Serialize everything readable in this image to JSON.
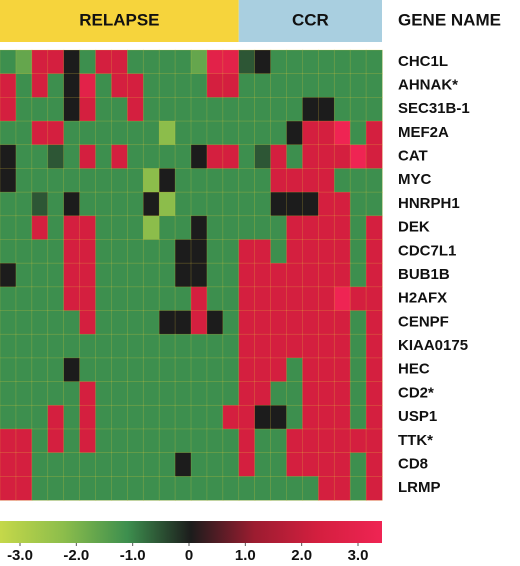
{
  "chart_data": {
    "type": "heatmap",
    "column_groups": [
      {
        "name": "RELAPSE",
        "color": "#f6d43c",
        "span": 15
      },
      {
        "name": "CCR",
        "color": "#a9cfe0",
        "span": 9
      }
    ],
    "row_header": "GENE NAME",
    "categories": [
      null,
      null,
      null,
      null,
      null,
      null,
      null,
      null,
      null,
      null,
      null,
      null,
      null,
      null,
      null,
      null,
      null,
      null,
      null,
      null,
      null,
      null,
      null,
      null
    ],
    "rows": [
      "CHC1L",
      "AHNAK*",
      "SEC31B-1",
      "MEF2A",
      "CAT",
      "MYC",
      "HNRPH1",
      "DEK",
      "CDC7L1",
      "BUB1B",
      "H2AFX",
      "CENPF",
      "KIAA0175",
      "HEC",
      "CD2*",
      "USP1",
      "TTK*",
      "CD8",
      "LRMP"
    ],
    "z": [
      [
        -1,
        -1.5,
        2,
        2,
        0,
        -1,
        2,
        2,
        -1,
        -1,
        -1,
        -1,
        -1.5,
        2.5,
        2.5,
        -0.5,
        0,
        -1,
        -1,
        -1,
        -1,
        -1,
        -1,
        -1
      ],
      [
        2,
        -1,
        2,
        -1,
        0,
        2.5,
        -1,
        2,
        2,
        -1,
        -1,
        -1,
        -1,
        2,
        2,
        -1,
        -1,
        -1,
        -1,
        -1,
        -1,
        -1,
        -1,
        -1
      ],
      [
        2,
        -1,
        -1,
        -1,
        0,
        2,
        -1,
        -1,
        2,
        -1,
        -1,
        -1,
        -1,
        -1,
        -1,
        -1,
        -1,
        -1,
        -1,
        0,
        0,
        -1,
        -1,
        -1
      ],
      [
        -1,
        -1,
        2,
        2,
        -1,
        -1,
        -1,
        -1,
        -1,
        -1,
        -2,
        -1,
        -1,
        -1,
        -1,
        -1,
        -1,
        -1,
        0,
        2,
        2,
        3,
        -1,
        2
      ],
      [
        0,
        -1,
        -1,
        -0.5,
        -1,
        2,
        -1,
        2,
        -1,
        -1,
        -1,
        -1,
        0,
        2,
        2,
        -1,
        -0.5,
        2,
        -1,
        2,
        2,
        2,
        3,
        2
      ],
      [
        0,
        -1,
        -1,
        -1,
        -1,
        -1,
        -1,
        -1,
        -1,
        -2,
        0,
        -1,
        -1,
        -1,
        -1,
        -1,
        -1,
        2,
        2,
        2,
        2,
        -1,
        -1,
        -1
      ],
      [
        -1,
        -1,
        -0.5,
        -1,
        0,
        -1,
        -1,
        -1,
        -1,
        0,
        -2,
        -1,
        -1,
        -1,
        -1,
        -1,
        -1,
        0,
        0,
        0,
        2,
        2,
        -1,
        -1
      ],
      [
        -1,
        -1,
        2,
        -1,
        2,
        2,
        -1,
        -1,
        -1,
        -2,
        -1,
        -1,
        0,
        -1,
        -1,
        -1,
        -1,
        -1,
        2,
        2,
        2,
        2,
        -1,
        2
      ],
      [
        -1,
        -1,
        -1,
        -1,
        2,
        2,
        -1,
        -1,
        -1,
        -1,
        -1,
        0,
        0,
        -1,
        -1,
        2,
        2,
        -1,
        2,
        2,
        2,
        2,
        -1,
        2
      ],
      [
        0,
        -1,
        -1,
        -1,
        2,
        2,
        -1,
        -1,
        -1,
        -1,
        -1,
        0,
        0,
        -1,
        -1,
        2,
        2,
        2,
        2,
        2,
        2,
        2,
        -1,
        2
      ],
      [
        -1,
        -1,
        -1,
        -1,
        2,
        2,
        -1,
        -1,
        -1,
        -1,
        -1,
        -1,
        2,
        -1,
        -1,
        2,
        2,
        2,
        2,
        2,
        2,
        3,
        2,
        2
      ],
      [
        -1,
        -1,
        -1,
        -1,
        -1,
        2,
        -1,
        -1,
        -1,
        -1,
        0,
        0,
        2,
        0,
        -1,
        2,
        2,
        2,
        2,
        2,
        2,
        2,
        -1,
        2
      ],
      [
        -1,
        -1,
        -1,
        -1,
        -1,
        -1,
        -1,
        -1,
        -1,
        -1,
        -1,
        -1,
        -1,
        -1,
        -1,
        2,
        2,
        2,
        2,
        2,
        2,
        2,
        -1,
        2
      ],
      [
        -1,
        -1,
        -1,
        -1,
        0,
        -1,
        -1,
        -1,
        -1,
        -1,
        -1,
        -1,
        -1,
        -1,
        -1,
        2,
        2,
        2,
        -1,
        2,
        2,
        2,
        -1,
        2
      ],
      [
        -1,
        -1,
        -1,
        -1,
        -1,
        2,
        -1,
        -1,
        -1,
        -1,
        -1,
        -1,
        -1,
        -1,
        -1,
        2,
        2,
        -1,
        -1,
        2,
        2,
        2,
        -1,
        2
      ],
      [
        -1,
        -1,
        -1,
        2,
        -1,
        2,
        -1,
        -1,
        -1,
        -1,
        -1,
        -1,
        -1,
        -1,
        2,
        2,
        0,
        0,
        -1,
        2,
        2,
        2,
        -1,
        2
      ],
      [
        2,
        2,
        -1,
        2,
        -1,
        2,
        -1,
        -1,
        -1,
        -1,
        -1,
        -1,
        -1,
        -1,
        -1,
        2,
        -1,
        -1,
        2,
        2,
        2,
        2,
        2,
        2
      ],
      [
        2,
        2,
        -1,
        -1,
        -1,
        -1,
        -1,
        -1,
        -1,
        -1,
        -1,
        0,
        -1,
        -1,
        -1,
        2,
        -1,
        -1,
        2,
        2,
        2,
        2,
        -1,
        2
      ],
      [
        2,
        2,
        -1,
        -1,
        -1,
        -1,
        -1,
        -1,
        -1,
        -1,
        -1,
        -1,
        -1,
        -1,
        -1,
        -1,
        -1,
        -1,
        -1,
        -1,
        2,
        2,
        -1,
        2
      ]
    ],
    "colorscale": [
      [
        -3,
        "#c5d84a"
      ],
      [
        -2,
        "#8cbd4b"
      ],
      [
        -1,
        "#3d8f4e"
      ],
      [
        0,
        "#1c1c1c"
      ],
      [
        1,
        "#9c1c30"
      ],
      [
        2,
        "#d41f3f"
      ],
      [
        3,
        "#ef2453"
      ]
    ],
    "cticks": [
      {
        "value": -3,
        "label": "-3.0"
      },
      {
        "value": -2,
        "label": "-2.0"
      },
      {
        "value": -1,
        "label": "-1.0"
      },
      0,
      {
        "value": 1,
        "label": "1.0"
      },
      {
        "value": 2,
        "label": "2.0"
      },
      {
        "value": 3,
        "label": "3.0"
      }
    ]
  }
}
